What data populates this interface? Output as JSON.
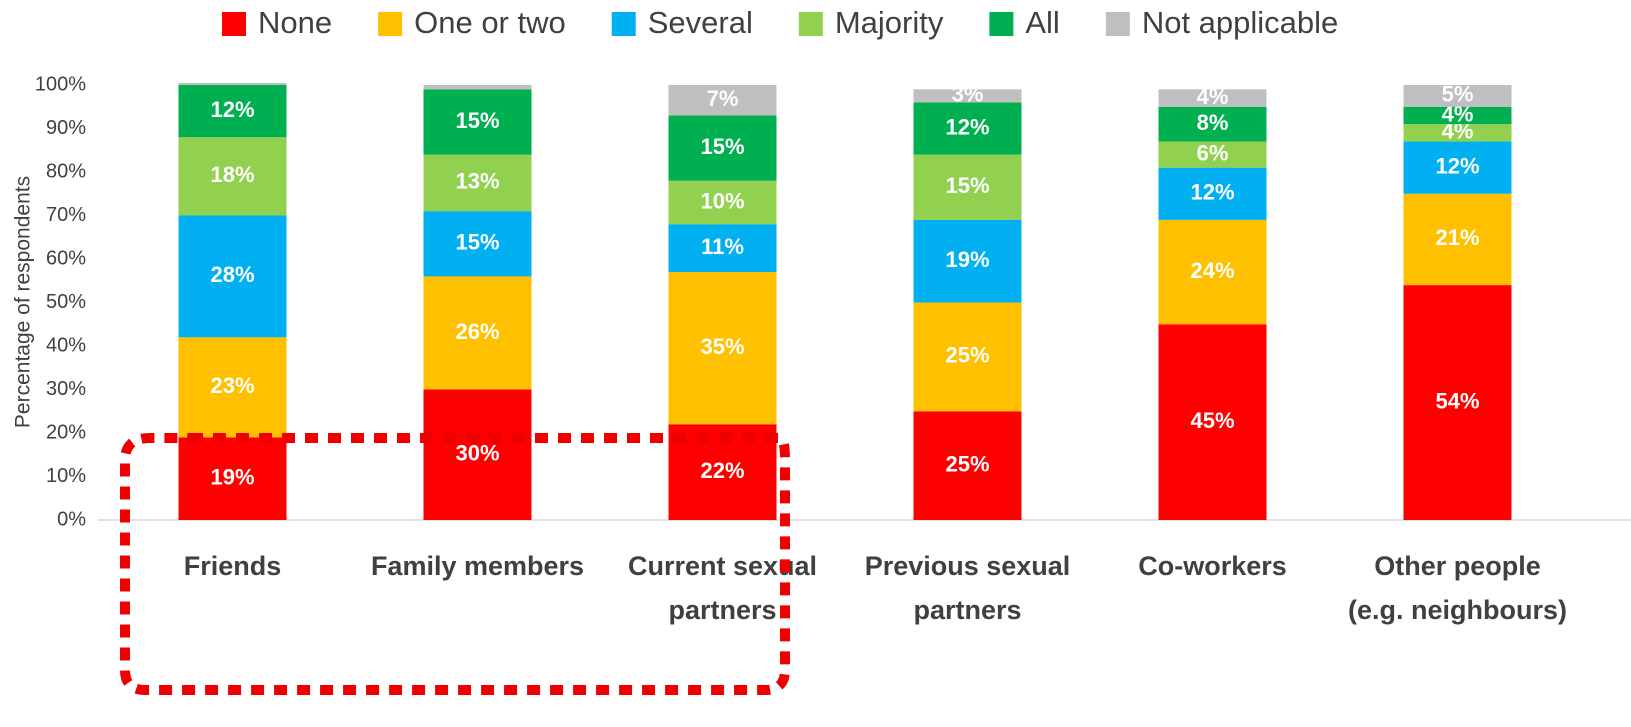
{
  "chart_data": {
    "type": "stacked_bar",
    "y_label": "Percentage of respondents",
    "categories": [
      "Friends",
      "Family members",
      "Current sexual partners",
      "Previous sexual partners",
      "Co-workers",
      "Other people (e.g. neighbours)"
    ],
    "series": [
      {
        "name": "None",
        "color": "#ff0000",
        "values": [
          19,
          30,
          22,
          25,
          45,
          54
        ],
        "value_labels": [
          "19%",
          "30%",
          "22%",
          "25%",
          "45%",
          "54%"
        ]
      },
      {
        "name": "One or two",
        "color": "#ffc000",
        "values": [
          23,
          26,
          35,
          25,
          24,
          21
        ],
        "value_labels": [
          "23%",
          "26%",
          "35%",
          "25%",
          "24%",
          "21%"
        ]
      },
      {
        "name": "Several",
        "color": "#00b0f0",
        "values": [
          28,
          15,
          11,
          19,
          12,
          12
        ],
        "value_labels": [
          "28%",
          "15%",
          "11%",
          "19%",
          "12%",
          "12%"
        ]
      },
      {
        "name": "Majority",
        "color": "#92d050",
        "values": [
          18,
          13,
          10,
          15,
          6,
          4
        ],
        "value_labels": [
          "18%",
          "13%",
          "10%",
          "15%",
          "6%",
          "4%"
        ]
      },
      {
        "name": "All",
        "color": "#00b050",
        "values": [
          12,
          15,
          15,
          12,
          8,
          4
        ],
        "value_labels": [
          "12%",
          "15%",
          "15%",
          "12%",
          "8%",
          "4%"
        ]
      },
      {
        "name": "Not applicable",
        "color": "#bfbfbf",
        "values": [
          0.5,
          1,
          7,
          3,
          4,
          5
        ],
        "value_labels": [
          null,
          null,
          "7%",
          "3%",
          "4%",
          "5%"
        ]
      }
    ],
    "ylim": [
      0,
      100
    ],
    "yticks": [
      {
        "value": 0,
        "label": "0%"
      },
      {
        "value": 10,
        "label": "10%"
      },
      {
        "value": 20,
        "label": "20%"
      },
      {
        "value": 30,
        "label": "30%"
      },
      {
        "value": 40,
        "label": "40%"
      },
      {
        "value": 50,
        "label": "50%"
      },
      {
        "value": 60,
        "label": "60%"
      },
      {
        "value": 70,
        "label": "70%"
      },
      {
        "value": 80,
        "label": "80%"
      },
      {
        "value": 90,
        "label": "90%"
      },
      {
        "value": 100,
        "label": "100%"
      }
    ],
    "grid": false
  }
}
